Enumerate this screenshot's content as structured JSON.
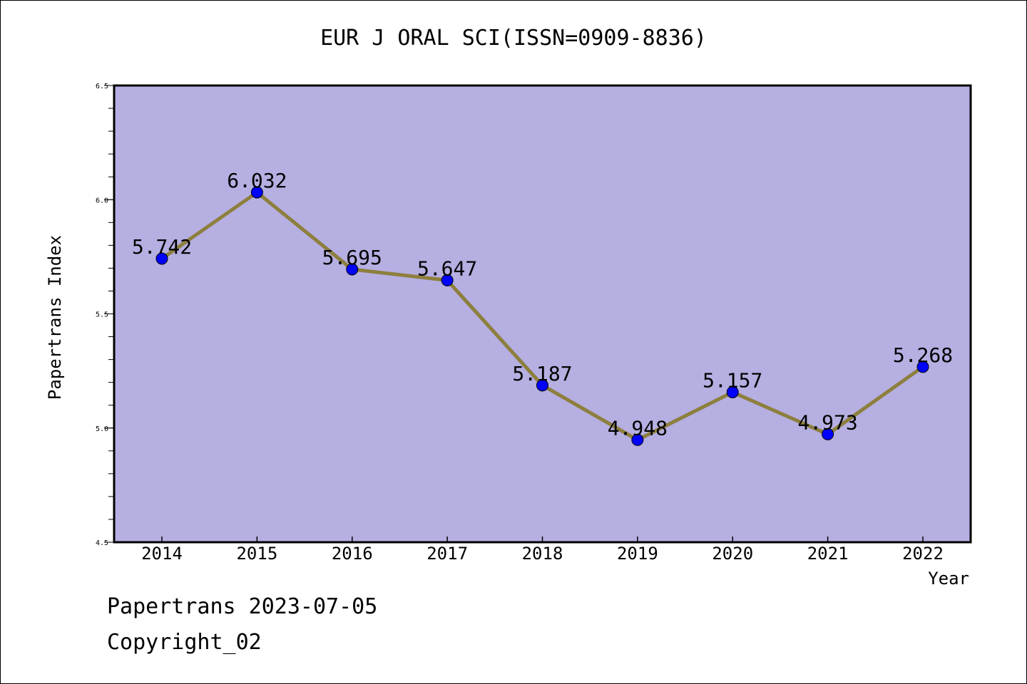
{
  "title": "EUR J ORAL SCI(ISSN=0909-8836)",
  "footer": {
    "line1": "Papertrans 2023-07-05",
    "line2": "Copyright_02"
  },
  "colors": {
    "plot_background": "#b5afe2",
    "line": "#8d7f3d",
    "marker": "#0000ff",
    "axis": "#000000"
  },
  "chart_data": {
    "type": "line",
    "title": "EUR J ORAL SCI(ISSN=0909-8836)",
    "xlabel": "Year",
    "ylabel": "Papertrans Index",
    "categories": [
      "2014",
      "2015",
      "2016",
      "2017",
      "2018",
      "2019",
      "2020",
      "2021",
      "2022"
    ],
    "series": [
      {
        "values": [
          5.742,
          6.032,
          5.695,
          5.647,
          5.187,
          4.948,
          5.157,
          4.973,
          5.268
        ],
        "data_labels": [
          "5.742",
          "6.032",
          "5.695",
          "5.647",
          "5.187",
          "4.948",
          "5.157",
          "4.973",
          "5.268"
        ]
      }
    ],
    "ylim": [
      4.5,
      6.5
    ],
    "yticks": [
      "4.5",
      "5.0",
      "5.5",
      "6.0",
      "6.5"
    ],
    "grid": false,
    "legend": "none"
  }
}
